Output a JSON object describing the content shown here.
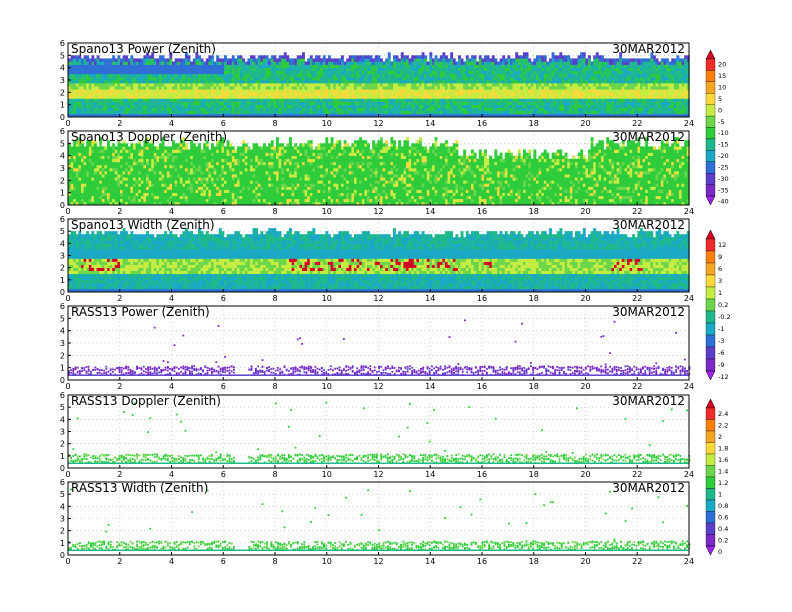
{
  "chart_data": [
    {
      "type": "heatmap",
      "title": "Spano13 Power (Zenith)",
      "date": "30MAR2012",
      "xlim": [
        0,
        24
      ],
      "ylim": [
        0,
        6
      ],
      "x_ticks": [
        "0",
        "2",
        "4",
        "6",
        "8",
        "10",
        "12",
        "14",
        "16",
        "18",
        "20",
        "22",
        "24"
      ],
      "y_ticks": [
        "0",
        "1",
        "2",
        "3",
        "4",
        "5",
        "6"
      ],
      "colorbar": 1,
      "kind": "full",
      "coverage": [
        {
          "x": [
            0,
            24
          ],
          "top": 5.3
        }
      ],
      "bands": [
        {
          "y": [
            1.6,
            2.3
          ],
          "v": 6
        },
        {
          "y": [
            2.3,
            2.8
          ],
          "v": 3
        }
      ]
    },
    {
      "type": "heatmap",
      "title": "Spano13 Doppler (Zenith)",
      "date": "30MAR2012",
      "xlim": [
        0,
        24
      ],
      "ylim": [
        0,
        6
      ],
      "x_ticks": [
        "0",
        "2",
        "4",
        "6",
        "8",
        "10",
        "12",
        "14",
        "16",
        "18",
        "20",
        "22",
        "24"
      ],
      "y_ticks": [
        "0",
        "1",
        "2",
        "3",
        "4",
        "5",
        "6"
      ],
      "colorbar": 1,
      "kind": "doppler",
      "coverage": [
        {
          "x": [
            0,
            24
          ],
          "top": 5.5
        }
      ]
    },
    {
      "type": "heatmap",
      "title": "Spano13 Width (Zenith)",
      "date": "30MAR2012",
      "xlim": [
        0,
        24
      ],
      "ylim": [
        0,
        6
      ],
      "x_ticks": [
        "0",
        "2",
        "4",
        "6",
        "8",
        "10",
        "12",
        "14",
        "16",
        "18",
        "20",
        "22",
        "24"
      ],
      "y_ticks": [
        "0",
        "1",
        "2",
        "3",
        "4",
        "5",
        "6"
      ],
      "colorbar": 2,
      "kind": "width",
      "coverage": [
        {
          "x": [
            0,
            24
          ],
          "top": 5.3
        }
      ],
      "hot_spans": [
        [
          0.5,
          2
        ],
        [
          8.5,
          15
        ],
        [
          15.9,
          16.3
        ],
        [
          20.8,
          22.2
        ]
      ]
    },
    {
      "type": "scatter",
      "title": "RASS13 Power (Zenith)",
      "date": "30MAR2012",
      "xlim": [
        0,
        24
      ],
      "ylim": [
        0,
        6
      ],
      "x_ticks": [
        "0",
        "2",
        "4",
        "6",
        "8",
        "10",
        "12",
        "14",
        "16",
        "18",
        "20",
        "22",
        "24"
      ],
      "y_ticks": [
        "0",
        "1",
        "2",
        "3",
        "4",
        "5",
        "6"
      ],
      "colorbar": 2,
      "kind": "rass_power",
      "band": [
        0.5,
        1.2
      ]
    },
    {
      "type": "scatter",
      "title": "RASS13 Doppler (Zenith)",
      "date": "30MAR2012",
      "xlim": [
        0,
        24
      ],
      "ylim": [
        0,
        6
      ],
      "x_ticks": [
        "0",
        "2",
        "4",
        "6",
        "8",
        "10",
        "12",
        "14",
        "16",
        "18",
        "20",
        "22",
        "24"
      ],
      "y_ticks": [
        "0",
        "1",
        "2",
        "3",
        "4",
        "5",
        "6"
      ],
      "colorbar": 3,
      "kind": "rass_green",
      "band": [
        0.5,
        1.2
      ]
    },
    {
      "type": "scatter",
      "title": "RASS13 Width (Zenith)",
      "date": "30MAR2012",
      "xlim": [
        0,
        24
      ],
      "ylim": [
        0,
        6
      ],
      "x_ticks": [
        "0",
        "2",
        "4",
        "6",
        "8",
        "10",
        "12",
        "14",
        "16",
        "18",
        "20",
        "22",
        "24"
      ],
      "y_ticks": [
        "0",
        "1",
        "2",
        "3",
        "4",
        "5",
        "6"
      ],
      "colorbar": 3,
      "kind": "rass_green",
      "band": [
        0.5,
        1.2
      ]
    }
  ],
  "colorbars": [
    {
      "labels": [
        "20",
        "15",
        "10",
        "5",
        "0",
        "-5",
        "-10",
        "-15",
        "-20",
        "-25",
        "-30",
        "-35",
        "-40"
      ],
      "colors": [
        "#d40025",
        "#ef2b2b",
        "#ff7f0e",
        "#f5a623",
        "#ffd93b",
        "#c6ec42",
        "#6bd64a",
        "#2ecc3a",
        "#1eb98a",
        "#1aa9c4",
        "#2f6fd6",
        "#5b3fc9",
        "#7d29c6",
        "#a020f0"
      ]
    },
    {
      "labels": [
        "12",
        "9",
        "6",
        "3",
        "1",
        "0.2",
        "-0.2",
        "-1",
        "-3",
        "-6",
        "-9",
        "-12"
      ],
      "colors": [
        "#d40025",
        "#ef2b2b",
        "#ff7f0e",
        "#f5a623",
        "#ffd93b",
        "#c6ec42",
        "#6bd64a",
        "#1eb98a",
        "#1aa9c4",
        "#2f6fd6",
        "#5b3fc9",
        "#7d29c6",
        "#a020f0"
      ]
    },
    {
      "labels": [
        "2.4",
        "2.2",
        "2",
        "1.8",
        "1.6",
        "1.4",
        "1.2",
        "1",
        "0.8",
        "0.6",
        "0.4",
        "0.2",
        "0"
      ],
      "colors": [
        "#d40025",
        "#ef2b2b",
        "#ff7f0e",
        "#f5a623",
        "#ffd93b",
        "#c6ec42",
        "#6bd64a",
        "#2ecc3a",
        "#1eb98a",
        "#1aa9c4",
        "#2f6fd6",
        "#5b3fc9",
        "#7d29c6",
        "#a020f0"
      ]
    }
  ]
}
